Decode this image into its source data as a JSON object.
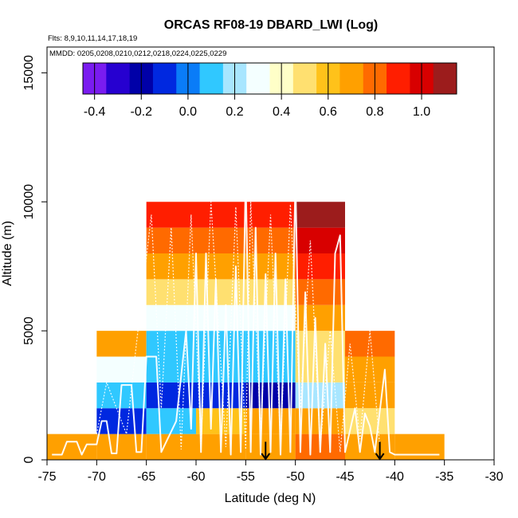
{
  "chart_data": {
    "type": "heatmap",
    "title": "ORCAS RF08-19 DBARD_LWI (Log)",
    "subtitle_flights": "Flts: 8,9,10,11,14,17,18,19",
    "subtitle_dates": "MMDD: 0205,0208,0210,0212,0218,0224,0225,0229",
    "xlabel": "Latitude (deg N)",
    "ylabel": "Altitude (m)",
    "xlim": [
      -75,
      -30
    ],
    "ylim": [
      0,
      16000
    ],
    "x_ticks": [
      -75,
      -70,
      -65,
      -60,
      -55,
      -50,
      -45,
      -40,
      -35,
      -30
    ],
    "y_ticks": [
      0,
      5000,
      10000,
      15000
    ],
    "colorbar": {
      "range": [
        -0.45,
        1.15
      ],
      "ticks": [
        -0.4,
        -0.2,
        0.0,
        0.2,
        0.4,
        0.6,
        0.8,
        1.0
      ],
      "tick_labels": [
        "-0.4",
        "-0.2",
        "0.0",
        "0.2",
        "0.4",
        "0.6",
        "0.8",
        "1.0"
      ],
      "colors": [
        "#7a1cf0",
        "#2600d0",
        "#0000a8",
        "#0028e0",
        "#0a7cf8",
        "#30c8ff",
        "#a8e6ff",
        "#f4ffff",
        "#ffffc8",
        "#ffe070",
        "#ffc21a",
        "#ffa000",
        "#ff6a00",
        "#ff1e00",
        "#d80000",
        "#9c1c1c"
      ]
    },
    "cells": [
      {
        "lat": [
          -75,
          -70
        ],
        "alt": [
          0,
          1000
        ],
        "value": 0.72
      },
      {
        "lat": [
          -70,
          -65
        ],
        "alt": [
          0,
          1000
        ],
        "value": 0.72
      },
      {
        "lat": [
          -65,
          -60
        ],
        "alt": [
          0,
          1000
        ],
        "value": 0.72
      },
      {
        "lat": [
          -60,
          -55
        ],
        "alt": [
          0,
          1000
        ],
        "value": 0.72
      },
      {
        "lat": [
          -55,
          -50
        ],
        "alt": [
          0,
          1000
        ],
        "value": 0.74
      },
      {
        "lat": [
          -50,
          -45
        ],
        "alt": [
          0,
          1000
        ],
        "value": 0.76
      },
      {
        "lat": [
          -45,
          -40
        ],
        "alt": [
          0,
          1000
        ],
        "value": 0.72
      },
      {
        "lat": [
          -40,
          -35
        ],
        "alt": [
          0,
          1000
        ],
        "value": 0.74
      },
      {
        "lat": [
          -70,
          -65
        ],
        "alt": [
          1000,
          2000
        ],
        "value": -0.15
      },
      {
        "lat": [
          -65,
          -60
        ],
        "alt": [
          1000,
          2000
        ],
        "value": 0.12
      },
      {
        "lat": [
          -60,
          -55
        ],
        "alt": [
          1000,
          2000
        ],
        "value": 0.55
      },
      {
        "lat": [
          -55,
          -50
        ],
        "alt": [
          1000,
          2000
        ],
        "value": 0.68
      },
      {
        "lat": [
          -50,
          -45
        ],
        "alt": [
          1000,
          2000
        ],
        "value": 0.72
      },
      {
        "lat": [
          -45,
          -40
        ],
        "alt": [
          1000,
          2000
        ],
        "value": 0.48
      },
      {
        "lat": [
          -70,
          -65
        ],
        "alt": [
          2000,
          3000
        ],
        "value": 0.12
      },
      {
        "lat": [
          -65,
          -60
        ],
        "alt": [
          2000,
          3000
        ],
        "value": -0.12
      },
      {
        "lat": [
          -60,
          -55
        ],
        "alt": [
          2000,
          3000
        ],
        "value": -0.08
      },
      {
        "lat": [
          -55,
          -50
        ],
        "alt": [
          2000,
          3000
        ],
        "value": -0.22
      },
      {
        "lat": [
          -50,
          -45
        ],
        "alt": [
          2000,
          3000
        ],
        "value": 0.22
      },
      {
        "lat": [
          -45,
          -40
        ],
        "alt": [
          2000,
          3000
        ],
        "value": 0.68
      },
      {
        "lat": [
          -70,
          -65
        ],
        "alt": [
          3000,
          4000
        ],
        "value": 0.32
      },
      {
        "lat": [
          -65,
          -60
        ],
        "alt": [
          3000,
          4000
        ],
        "value": 0.08
      },
      {
        "lat": [
          -60,
          -55
        ],
        "alt": [
          3000,
          4000
        ],
        "value": 0.08
      },
      {
        "lat": [
          -55,
          -50
        ],
        "alt": [
          3000,
          4000
        ],
        "value": 0.08
      },
      {
        "lat": [
          -50,
          -45
        ],
        "alt": [
          3000,
          4000
        ],
        "value": 0.46
      },
      {
        "lat": [
          -45,
          -40
        ],
        "alt": [
          3000,
          4000
        ],
        "value": 0.66
      },
      {
        "lat": [
          -70,
          -65
        ],
        "alt": [
          4000,
          5000
        ],
        "value": 0.7
      },
      {
        "lat": [
          -65,
          -60
        ],
        "alt": [
          4000,
          5000
        ],
        "value": 0.12
      },
      {
        "lat": [
          -60,
          -55
        ],
        "alt": [
          4000,
          5000
        ],
        "value": 0.12
      },
      {
        "lat": [
          -55,
          -50
        ],
        "alt": [
          4000,
          5000
        ],
        "value": 0.12
      },
      {
        "lat": [
          -50,
          -45
        ],
        "alt": [
          4000,
          5000
        ],
        "value": 0.47
      },
      {
        "lat": [
          -45,
          -40
        ],
        "alt": [
          4000,
          5000
        ],
        "value": 0.84
      },
      {
        "lat": [
          -65,
          -60
        ],
        "alt": [
          5000,
          6000
        ],
        "value": 0.34
      },
      {
        "lat": [
          -60,
          -55
        ],
        "alt": [
          5000,
          6000
        ],
        "value": 0.34
      },
      {
        "lat": [
          -55,
          -50
        ],
        "alt": [
          5000,
          6000
        ],
        "value": 0.34
      },
      {
        "lat": [
          -50,
          -45
        ],
        "alt": [
          5000,
          6000
        ],
        "value": 0.67
      },
      {
        "lat": [
          -65,
          -60
        ],
        "alt": [
          6000,
          7000
        ],
        "value": 0.52
      },
      {
        "lat": [
          -60,
          -55
        ],
        "alt": [
          6000,
          7000
        ],
        "value": 0.52
      },
      {
        "lat": [
          -55,
          -50
        ],
        "alt": [
          6000,
          7000
        ],
        "value": 0.52
      },
      {
        "lat": [
          -50,
          -45
        ],
        "alt": [
          6000,
          7000
        ],
        "value": 0.77
      },
      {
        "lat": [
          -65,
          -60
        ],
        "alt": [
          7000,
          8000
        ],
        "value": 0.7
      },
      {
        "lat": [
          -60,
          -55
        ],
        "alt": [
          7000,
          8000
        ],
        "value": 0.7
      },
      {
        "lat": [
          -55,
          -50
        ],
        "alt": [
          7000,
          8000
        ],
        "value": 0.7
      },
      {
        "lat": [
          -50,
          -45
        ],
        "alt": [
          7000,
          8000
        ],
        "value": 0.86
      },
      {
        "lat": [
          -65,
          -60
        ],
        "alt": [
          8000,
          9000
        ],
        "value": 0.8
      },
      {
        "lat": [
          -60,
          -55
        ],
        "alt": [
          8000,
          9000
        ],
        "value": 0.8
      },
      {
        "lat": [
          -55,
          -50
        ],
        "alt": [
          8000,
          9000
        ],
        "value": 0.8
      },
      {
        "lat": [
          -50,
          -45
        ],
        "alt": [
          8000,
          9000
        ],
        "value": 0.96
      },
      {
        "lat": [
          -65,
          -60
        ],
        "alt": [
          9000,
          10000
        ],
        "value": 0.94
      },
      {
        "lat": [
          -60,
          -55
        ],
        "alt": [
          9000,
          10000
        ],
        "value": 0.94
      },
      {
        "lat": [
          -55,
          -50
        ],
        "alt": [
          9000,
          10000
        ],
        "value": 0.94
      },
      {
        "lat": [
          -50,
          -45
        ],
        "alt": [
          9000,
          10000
        ],
        "value": 1.1
      }
    ],
    "arrows": [
      {
        "lat": -53,
        "alt_top": 700,
        "alt_bottom": 0
      },
      {
        "lat": -41.5,
        "alt_top": 700,
        "alt_bottom": 0
      }
    ],
    "flight_track": [
      [
        -74.5,
        200
      ],
      [
        -73.5,
        200
      ],
      [
        -73,
        700
      ],
      [
        -72,
        700
      ],
      [
        -71.5,
        200
      ],
      [
        -71,
        600
      ],
      [
        -70,
        600
      ],
      [
        -69.5,
        1500
      ],
      [
        -69,
        1500
      ],
      [
        -68.5,
        250
      ],
      [
        -68,
        250
      ],
      [
        -67.5,
        2900
      ],
      [
        -66.5,
        2900
      ],
      [
        -66,
        300
      ],
      [
        -65.5,
        300
      ],
      [
        -65,
        4000
      ],
      [
        -64,
        4000
      ],
      [
        -63.5,
        300
      ],
      [
        -62,
        1500
      ],
      [
        -61,
        5000
      ],
      [
        -60.5,
        1200
      ],
      [
        -60,
        8000
      ],
      [
        -59.5,
        300
      ],
      [
        -59,
        8000
      ],
      [
        -58.5,
        1200
      ],
      [
        -58,
        7000
      ],
      [
        -57.5,
        300
      ],
      [
        -57,
        6000
      ],
      [
        -56.5,
        200
      ],
      [
        -56,
        7500
      ],
      [
        -55.5,
        300
      ],
      [
        -55,
        11000
      ],
      [
        -54.5,
        300
      ],
      [
        -54,
        9000
      ],
      [
        -53.5,
        200
      ],
      [
        -53,
        7200
      ],
      [
        -52.5,
        300
      ],
      [
        -52,
        8000
      ],
      [
        -51.5,
        200
      ],
      [
        -51,
        7000
      ],
      [
        -50.5,
        300
      ],
      [
        -50,
        11000
      ],
      [
        -49.5,
        300
      ],
      [
        -49,
        6500
      ],
      [
        -48.5,
        200
      ],
      [
        -48,
        5500
      ],
      [
        -47.5,
        300
      ],
      [
        -47,
        4500
      ],
      [
        -46.5,
        300
      ],
      [
        -46,
        8000
      ],
      [
        -45.5,
        8700
      ],
      [
        -45,
        300
      ],
      [
        -44,
        2000
      ],
      [
        -43.5,
        300
      ],
      [
        -43,
        1800
      ],
      [
        -42.5,
        1300
      ],
      [
        -42,
        300
      ],
      [
        -41,
        3500
      ],
      [
        -40.5,
        300
      ],
      [
        -40,
        200
      ],
      [
        -38,
        200
      ],
      [
        -36.5,
        200
      ],
      [
        -35.5,
        200
      ]
    ],
    "flight_track_2": [
      [
        -70,
        1000
      ],
      [
        -69,
        3000
      ],
      [
        -67,
        1000
      ],
      [
        -66,
        4500
      ],
      [
        -64.5,
        9500
      ],
      [
        -63.5,
        2000
      ],
      [
        -62.5,
        9000
      ],
      [
        -61.5,
        400
      ],
      [
        -60.5,
        9500
      ],
      [
        -59.5,
        600
      ],
      [
        -58.5,
        10000
      ],
      [
        -57,
        500
      ],
      [
        -56,
        9800
      ],
      [
        -55,
        400
      ],
      [
        -54.5,
        10000
      ],
      [
        -53.5,
        1000
      ],
      [
        -52.5,
        9500
      ],
      [
        -51.5,
        600
      ],
      [
        -50.5,
        9900
      ],
      [
        -49.5,
        2000
      ],
      [
        -48.5,
        8500
      ],
      [
        -47.5,
        500
      ],
      [
        -46.5,
        5000
      ],
      [
        -45.5,
        300
      ],
      [
        -44.5,
        4500
      ],
      [
        -43.5,
        800
      ],
      [
        -42.5,
        5000
      ],
      [
        -41.5,
        500
      ]
    ]
  }
}
